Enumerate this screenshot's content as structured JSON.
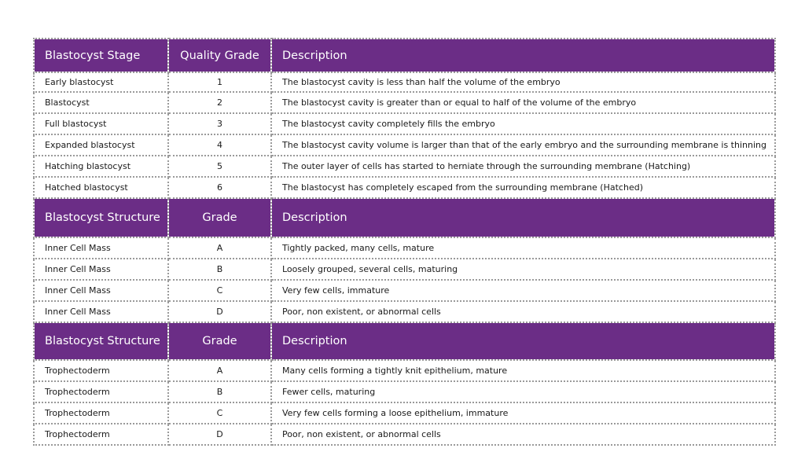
{
  "sections": [
    {
      "headers": [
        "Blastocyst Stage",
        "Quality Grade",
        "Description"
      ],
      "rows": [
        [
          "Early blastocyst",
          "1",
          "The blastocyst cavity is less than half the volume of the embryo"
        ],
        [
          "Blastocyst",
          "2",
          "The blastocyst cavity is greater than or equal to half of the volume of the embryo"
        ],
        [
          "Full blastocyst",
          "3",
          "The blastocyst cavity completely fills the embryo"
        ],
        [
          "Expanded blastocyst",
          "4",
          "The blastocyst cavity volume is larger than that of the early embryo and the surrounding membrane is thinning"
        ],
        [
          "Hatching blastocyst",
          "5",
          "The outer layer of cells has started to herniate through the surrounding membrane (Hatching)"
        ],
        [
          "Hatched blastocyst",
          "6",
          "The blastocyst has completely escaped from the surrounding membrane (Hatched)"
        ]
      ]
    },
    {
      "headers": [
        "Blastocyst Structure",
        "Grade",
        "Description"
      ],
      "rows": [
        [
          "Inner Cell Mass",
          "A",
          "Tightly packed, many cells, mature"
        ],
        [
          "Inner Cell Mass",
          "B",
          "Loosely grouped, several cells, maturing"
        ],
        [
          "Inner Cell Mass",
          "C",
          "Very few cells, immature"
        ],
        [
          "Inner Cell Mass",
          "D",
          "Poor, non existent, or abnormal cells"
        ]
      ]
    },
    {
      "headers": [
        "Blastocyst Structure",
        "Grade",
        "Description"
      ],
      "rows": [
        [
          "Trophectoderm",
          "A",
          "Many cells forming a tightly knit epithelium, mature"
        ],
        [
          "Trophectoderm",
          "B",
          "Fewer cells, maturing"
        ],
        [
          "Trophectoderm",
          "C",
          "Very few cells forming a loose epithelium, immature"
        ],
        [
          "Trophectoderm",
          "D",
          "Poor, non existent, or abnormal cells"
        ]
      ]
    }
  ],
  "colors": {
    "header_bg": "#6b2d86",
    "header_text": "#ffffff",
    "border": "#9a9a9a"
  }
}
